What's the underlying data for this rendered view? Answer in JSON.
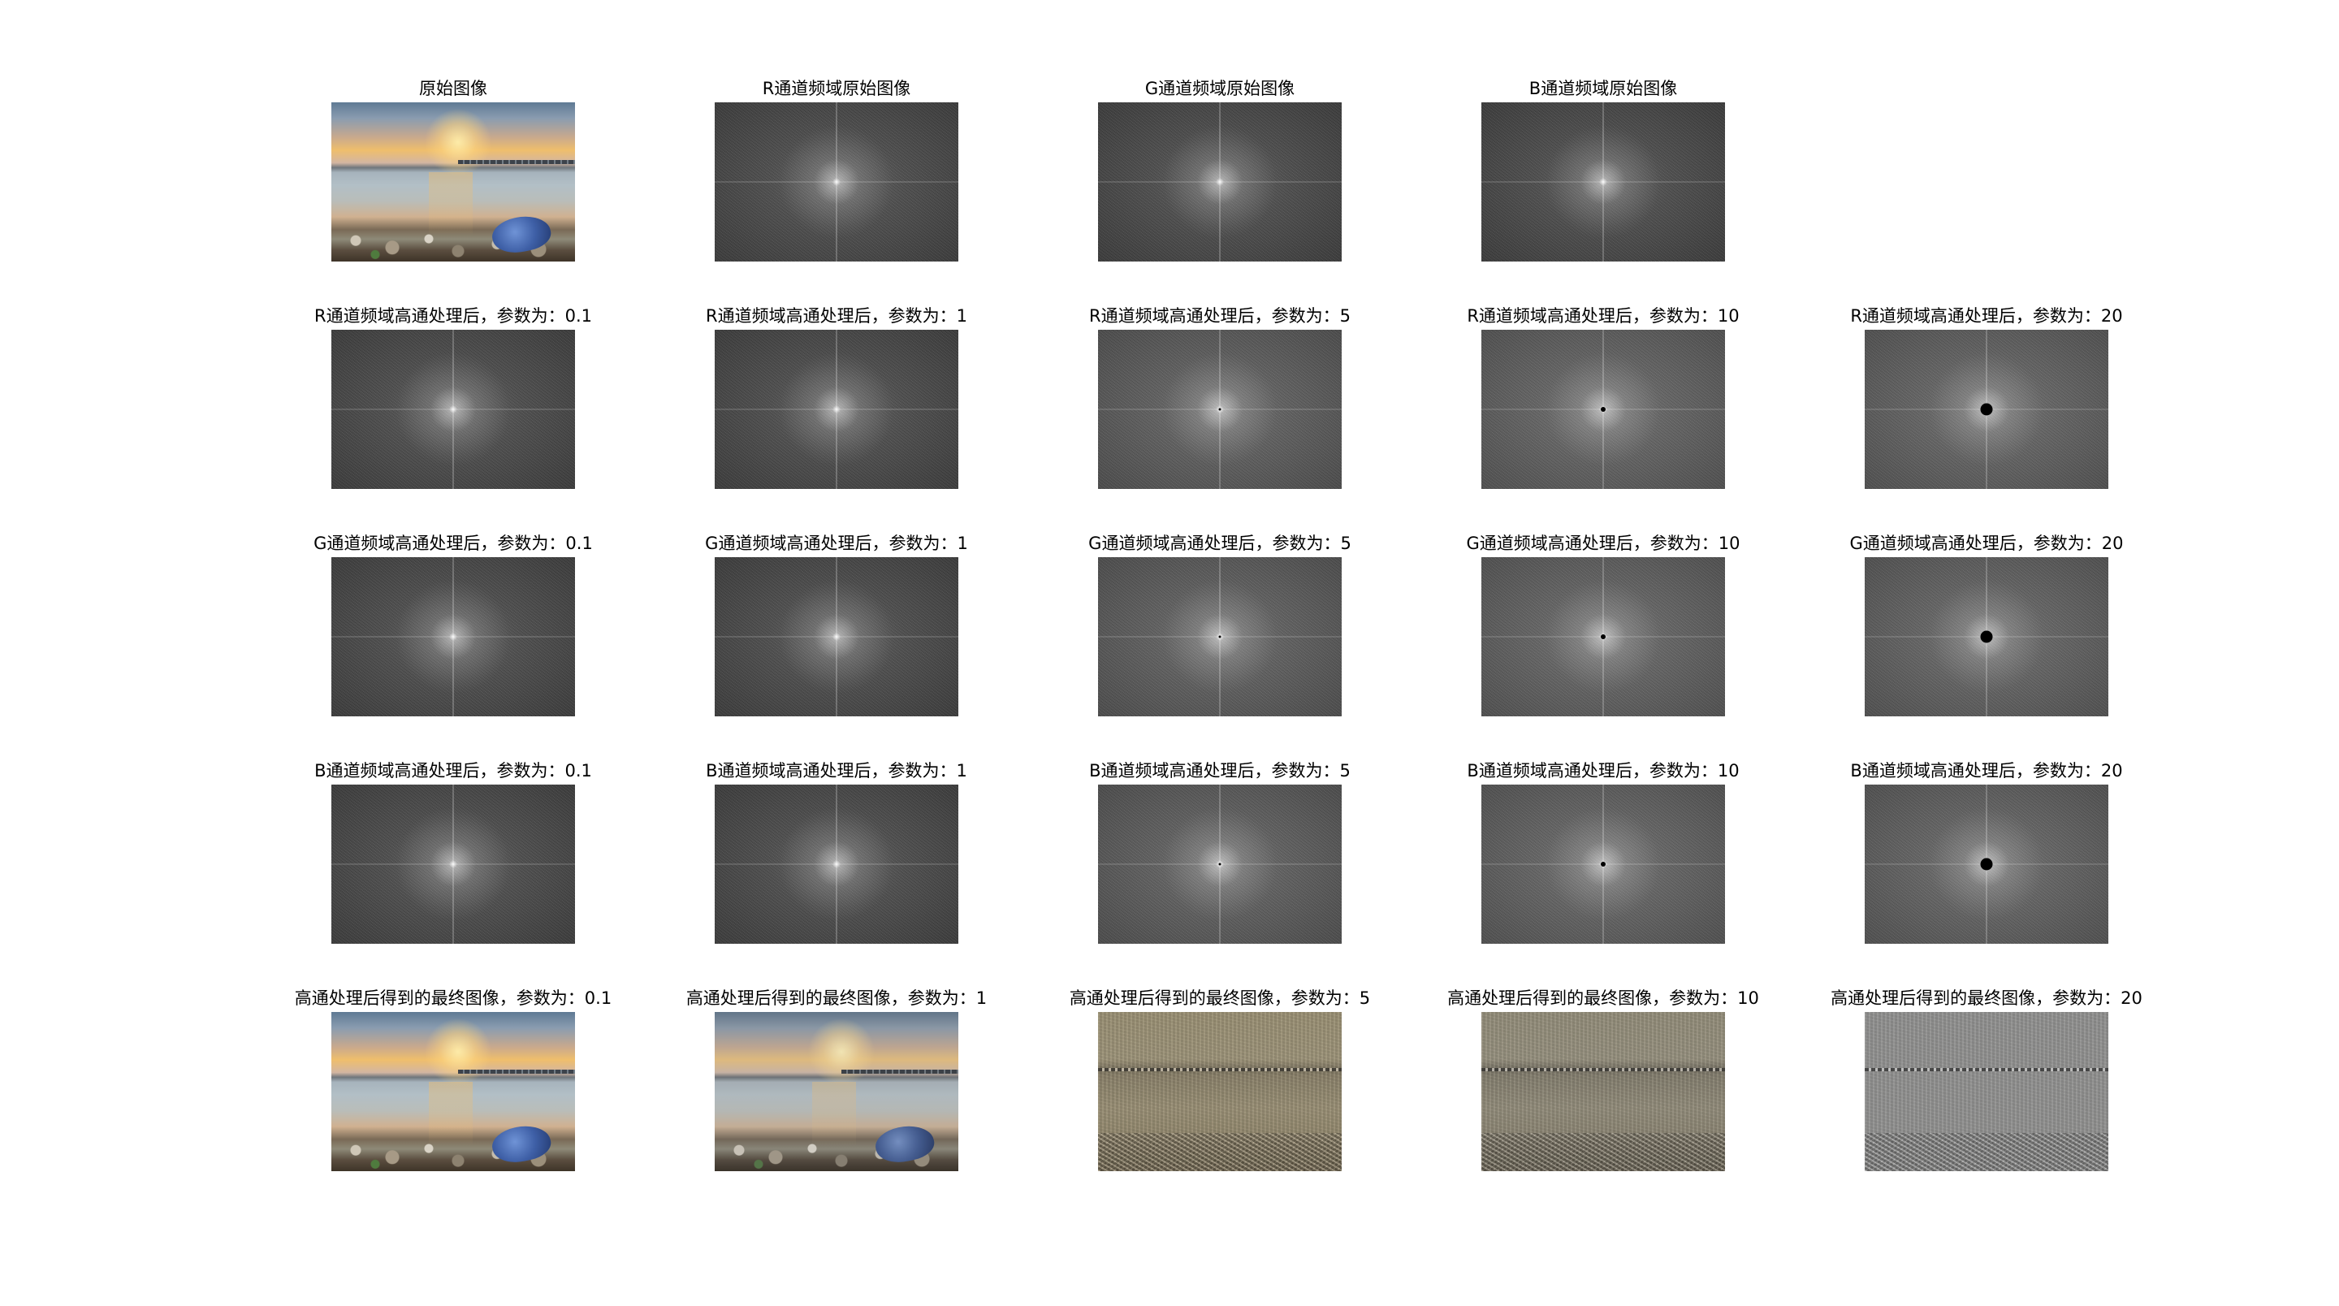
{
  "row1": {
    "titles": [
      "原始图像",
      "R通道频域原始图像",
      "G通道频域原始图像",
      "B通道频域原始图像"
    ]
  },
  "row2": {
    "titles": [
      "R通道频域高通处理后，参数为：0.1",
      "R通道频域高通处理后，参数为：1",
      "R通道频域高通处理后，参数为：5",
      "R通道频域高通处理后，参数为：10",
      "R通道频域高通处理后，参数为：20"
    ]
  },
  "row3": {
    "titles": [
      "G通道频域高通处理后，参数为：0.1",
      "G通道频域高通处理后，参数为：1",
      "G通道频域高通处理后，参数为：5",
      "G通道频域高通处理后，参数为：10",
      "G通道频域高通处理后，参数为：20"
    ]
  },
  "row4": {
    "titles": [
      "B通道频域高通处理后，参数为：0.1",
      "B通道频域高通处理后，参数为：1",
      "B通道频域高通处理后，参数为：5",
      "B通道频域高通处理后，参数为：10",
      "B通道频域高通处理后，参数为：20"
    ]
  },
  "row5": {
    "titles": [
      "高通处理后得到的最终图像，参数为：0.1",
      "高通处理后得到的最终图像，参数为：1",
      "高通处理后得到的最终图像，参数为：5",
      "高通处理后得到的最终图像，参数为：10",
      "高通处理后得到的最终图像，参数为：20"
    ]
  }
}
